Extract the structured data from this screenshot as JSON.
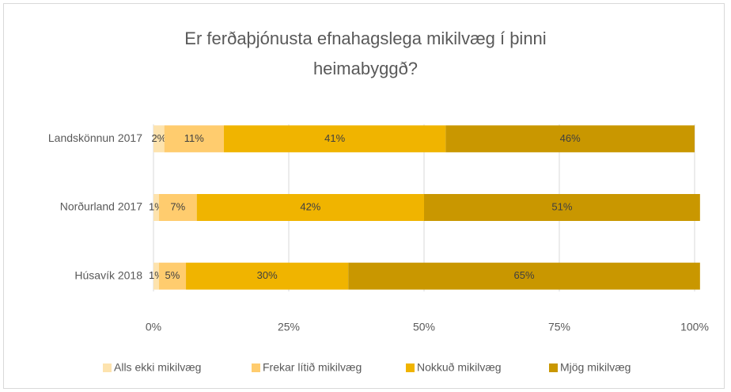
{
  "chart_data": {
    "type": "stacked_barh",
    "title": "Er ferðaþjónusta efnahagslega mikilvæg í þinni heimabyggð?",
    "categories": [
      "Landskönnun 2017",
      "Norðurland 2017",
      "Húsavík 2018"
    ],
    "series": [
      {
        "name": "Alls ekki mikilvæg",
        "color": "#fde3ae",
        "values": [
          2,
          1,
          1
        ],
        "value_labels": [
          "2%",
          "1%",
          "1%"
        ]
      },
      {
        "name": "Frekar lítið mikilvæg",
        "color": "#ffcc6e",
        "values": [
          11,
          7,
          5
        ],
        "value_labels": [
          "11%",
          "7%",
          "5%"
        ]
      },
      {
        "name": "Nokkuð mikilvæg",
        "color": "#f0b400",
        "values": [
          41,
          42,
          30
        ],
        "value_labels": [
          "41%",
          "42%",
          "30%"
        ]
      },
      {
        "name": "Mjög mikilvæg",
        "color": "#c99700",
        "values": [
          46,
          51,
          65
        ],
        "value_labels": [
          "46%",
          "51%",
          "65%"
        ]
      }
    ],
    "xlim": [
      0,
      100
    ],
    "xticks": [
      {
        "value": 0,
        "label": "0%"
      },
      {
        "value": 25,
        "label": "25%"
      },
      {
        "value": 50,
        "label": "50%"
      },
      {
        "value": 75,
        "label": "75%"
      },
      {
        "value": 100,
        "label": "100%"
      }
    ],
    "grid": true,
    "legend": "bottom"
  }
}
